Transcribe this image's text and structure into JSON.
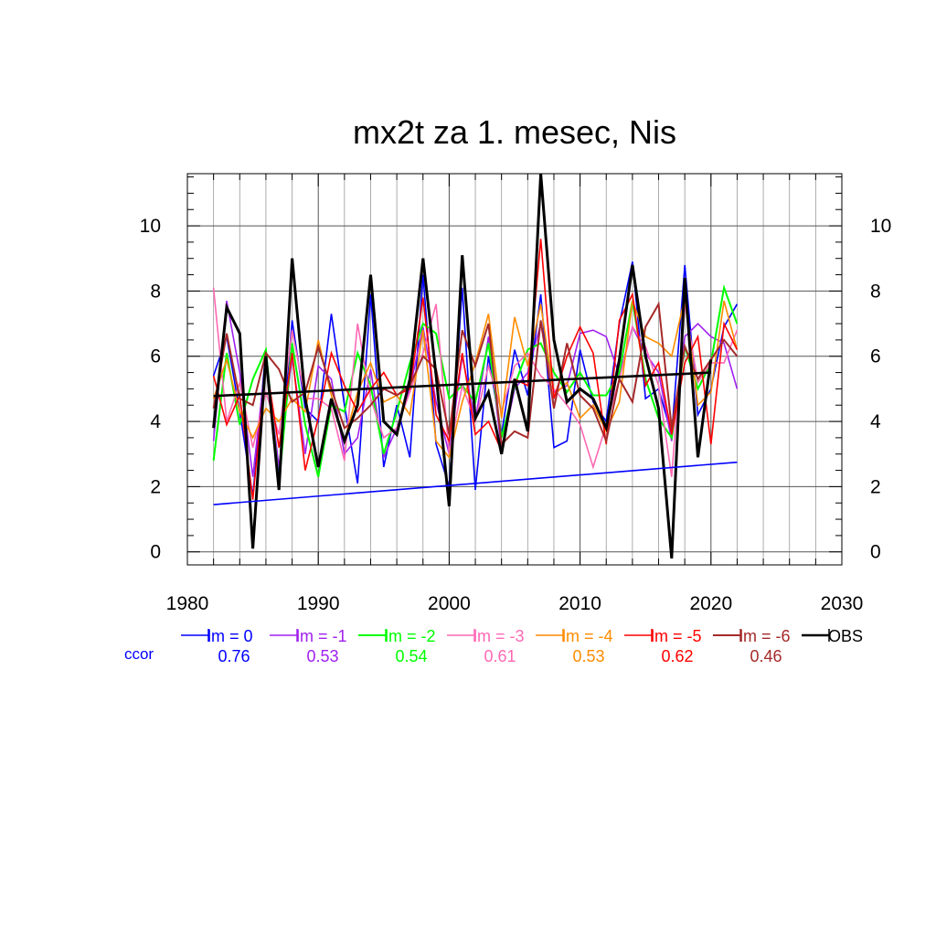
{
  "chart_data": {
    "type": "line",
    "title": "mx2t za 1. mesec, Nis",
    "xlabel": "",
    "ylabel": "",
    "xlim": [
      1980,
      2030
    ],
    "ylim": [
      -0.4,
      11.6
    ],
    "x_ticks": [
      1980,
      1990,
      2000,
      2010,
      2020,
      2030
    ],
    "y_ticks": [
      0,
      2,
      4,
      6,
      8,
      10
    ],
    "grid": true,
    "legend_position": "bottom",
    "ccor_label": "ccor",
    "x": [
      1982,
      1983,
      1984,
      1985,
      1986,
      1987,
      1988,
      1989,
      1990,
      1991,
      1992,
      1993,
      1994,
      1995,
      1996,
      1997,
      1998,
      1999,
      2000,
      2001,
      2002,
      2003,
      2004,
      2005,
      2006,
      2007,
      2008,
      2009,
      2010,
      2011,
      2012,
      2013,
      2014,
      2015,
      2016,
      2017,
      2018,
      2019,
      2020,
      2021,
      2022
    ],
    "series": [
      {
        "name": "lm = 0",
        "color": "#0000ff",
        "width": 1.6,
        "ccor": "0.76",
        "values": [
          5.4,
          6.6,
          4.3,
          1.7,
          6.2,
          2.3,
          7.1,
          4.4,
          4.0,
          7.3,
          4.5,
          2.1,
          7.9,
          2.6,
          4.5,
          2.9,
          8.5,
          3.3,
          2.0,
          8.1,
          1.9,
          6.0,
          3.6,
          6.2,
          4.8,
          7.9,
          3.2,
          3.4,
          6.2,
          4.6,
          4.0,
          7.0,
          8.9,
          4.7,
          5.0,
          3.6,
          8.8,
          4.2,
          5.0,
          6.9,
          7.6
        ]
      },
      {
        "name": "lm = -1",
        "color": "#a020f0",
        "width": 1.6,
        "ccor": "0.53",
        "values": [
          3.4,
          7.7,
          5.5,
          2.3,
          5.9,
          2.6,
          6.0,
          3.0,
          5.7,
          5.3,
          3.0,
          3.5,
          5.6,
          2.9,
          3.8,
          5.0,
          6.9,
          4.6,
          3.0,
          6.0,
          4.0,
          6.6,
          3.1,
          5.0,
          5.5,
          7.0,
          4.9,
          5.1,
          6.7,
          6.8,
          6.6,
          5.4,
          6.9,
          6.1,
          5.5,
          3.4,
          6.6,
          7.0,
          6.6,
          6.4,
          5.0
        ]
      },
      {
        "name": "lm = -2",
        "color": "#00ff00",
        "width": 2.0,
        "ccor": "0.54",
        "values": [
          2.8,
          6.1,
          3.9,
          5.3,
          6.2,
          2.1,
          6.4,
          3.9,
          2.3,
          4.5,
          4.3,
          6.1,
          5.1,
          3.0,
          4.3,
          5.8,
          7.0,
          6.7,
          4.7,
          5.1,
          4.6,
          6.4,
          3.5,
          5.1,
          6.2,
          6.4,
          5.5,
          4.9,
          5.5,
          4.8,
          4.8,
          5.5,
          7.7,
          5.3,
          4.1,
          3.5,
          6.3,
          5.0,
          5.8,
          8.1,
          7.0
        ]
      },
      {
        "name": "lm = -3",
        "color": "#ff69b4",
        "width": 1.6,
        "ccor": "0.61",
        "values": [
          8.1,
          4.0,
          5.2,
          3.2,
          4.9,
          3.6,
          6.8,
          4.7,
          4.7,
          4.4,
          2.8,
          7.0,
          4.7,
          3.5,
          3.8,
          4.9,
          6.1,
          7.6,
          3.0,
          5.1,
          4.0,
          5.7,
          4.3,
          5.7,
          6.1,
          5.4,
          5.0,
          4.5,
          3.9,
          2.6,
          3.9,
          5.3,
          6.9,
          6.3,
          5.1,
          2.3,
          7.6,
          5.2,
          5.8,
          5.8,
          6.8
        ]
      },
      {
        "name": "lm = -4",
        "color": "#ff8c00",
        "width": 1.6,
        "ccor": "0.53",
        "values": [
          4.7,
          5.9,
          4.3,
          3.5,
          4.4,
          4.0,
          4.7,
          4.3,
          6.5,
          4.8,
          3.4,
          4.9,
          5.8,
          4.6,
          4.8,
          4.2,
          6.8,
          3.4,
          2.9,
          4.6,
          5.8,
          7.3,
          4.1,
          7.2,
          5.7,
          7.6,
          4.8,
          5.2,
          4.1,
          4.5,
          3.7,
          4.6,
          7.7,
          6.6,
          6.4,
          6.0,
          7.8,
          4.5,
          4.9,
          7.7,
          6.2
        ]
      },
      {
        "name": "lm = -5",
        "color": "#ff0000",
        "width": 1.6,
        "ccor": "0.62",
        "values": [
          5.4,
          3.9,
          4.8,
          1.6,
          5.8,
          3.2,
          6.1,
          2.5,
          4.1,
          6.1,
          5.1,
          4.3,
          5.0,
          5.5,
          4.8,
          5.0,
          7.8,
          4.2,
          3.4,
          6.1,
          3.6,
          4.0,
          3.1,
          5.3,
          5.1,
          9.6,
          4.7,
          6.0,
          6.9,
          6.1,
          3.3,
          7.1,
          7.9,
          5.1,
          5.8,
          3.6,
          5.8,
          6.6,
          3.3,
          7.0,
          6.2
        ]
      },
      {
        "name": "lm = -6",
        "color": "#a52a2a",
        "width": 2.0,
        "ccor": "0.46",
        "values": [
          4.4,
          6.7,
          4.7,
          4.5,
          6.1,
          5.6,
          4.6,
          4.9,
          6.3,
          5.0,
          3.8,
          4.1,
          4.5,
          5.0,
          4.8,
          5.1,
          6.0,
          5.6,
          3.6,
          6.8,
          5.7,
          7.0,
          3.3,
          3.7,
          3.5,
          7.1,
          4.4,
          6.4,
          4.8,
          4.4,
          3.4,
          5.3,
          4.6,
          6.9,
          7.6,
          3.8,
          6.3,
          5.3,
          5.9,
          6.5,
          6.0
        ]
      },
      {
        "name": "OBS",
        "color": "#000000",
        "width": 3.0,
        "ccor": "",
        "values": [
          3.8,
          7.5,
          6.7,
          0.1,
          6.0,
          1.9,
          9.0,
          4.7,
          2.6,
          4.7,
          3.4,
          4.5,
          8.5,
          4.0,
          3.6,
          5.3,
          9.0,
          5.4,
          1.4,
          9.1,
          4.1,
          4.9,
          3.0,
          5.3,
          3.7,
          11.6,
          6.5,
          4.6,
          5.0,
          4.7,
          3.8,
          5.9,
          8.8,
          6.0,
          4.4,
          -0.2,
          8.4,
          2.9,
          5.9,
          null,
          null
        ]
      }
    ],
    "trends": [
      {
        "label": "OBS trend",
        "color": "#000000",
        "width": 2.6,
        "x": [
          1982,
          2020
        ],
        "y": [
          4.78,
          5.5
        ]
      },
      {
        "label": "model trend",
        "color": "#0000ff",
        "width": 1.6,
        "x": [
          1982,
          2022
        ],
        "y": [
          1.45,
          2.75
        ]
      }
    ]
  }
}
